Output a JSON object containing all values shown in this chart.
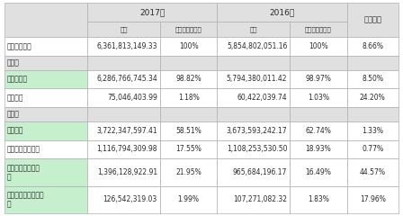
{
  "title_2017": "2017年",
  "title_2016": "2016年",
  "col_yonbi": "同比增减",
  "sub_col_jine": "金额",
  "sub_col_zhan": "占营业收入比重",
  "header_bg": "#e0e0e0",
  "section_bg": "#e0e0e0",
  "green_bg": "#c6efce",
  "white_bg": "#ffffff",
  "border_color": "#b0b0b0",
  "text_color": "#2a2a2a",
  "rows": [
    {
      "label": "营业收入合计",
      "val_2017": "6,361,813,149.33",
      "pct_2017": "100%",
      "val_2016": "5,854,802,051.16",
      "pct_2016": "100%",
      "yonbi": "8.66%",
      "label_bg": "#ffffff",
      "data_bg": "#ffffff",
      "is_section": false
    },
    {
      "label": "分行业",
      "val_2017": "",
      "pct_2017": "",
      "val_2016": "",
      "pct_2016": "",
      "yonbi": "",
      "label_bg": "#e0e0e0",
      "data_bg": "#e0e0e0",
      "is_section": true
    },
    {
      "label": "连接器行业",
      "val_2017": "6,286,766,745.34",
      "pct_2017": "98.82%",
      "val_2016": "5,794,380,011.42",
      "pct_2016": "98.97%",
      "yonbi": "8.50%",
      "label_bg": "#c6efce",
      "data_bg": "#ffffff",
      "is_section": false
    },
    {
      "label": "其他行业",
      "val_2017": "75,046,403.99",
      "pct_2017": "1.18%",
      "val_2016": "60,422,039.74",
      "pct_2016": "1.03%",
      "yonbi": "24.20%",
      "label_bg": "#ffffff",
      "data_bg": "#ffffff",
      "is_section": false
    },
    {
      "label": "分产品",
      "val_2017": "",
      "pct_2017": "",
      "val_2016": "",
      "pct_2016": "",
      "yonbi": "",
      "label_bg": "#e0e0e0",
      "data_bg": "#e0e0e0",
      "is_section": true
    },
    {
      "label": "电连接器",
      "val_2017": "3,722,347,597.41",
      "pct_2017": "58.51%",
      "val_2016": "3,673,593,242.17",
      "pct_2016": "62.74%",
      "yonbi": "1.33%",
      "label_bg": "#c6efce",
      "data_bg": "#ffffff",
      "is_section": false
    },
    {
      "label": "光器件及光电设备",
      "val_2017": "1,116,794,309.98",
      "pct_2017": "17.55%",
      "val_2016": "1,108,253,530.50",
      "pct_2016": "18.93%",
      "yonbi": "0.77%",
      "label_bg": "#ffffff",
      "data_bg": "#ffffff",
      "is_section": false
    },
    {
      "label": "线缆组件及集成产品",
      "val_2017": "1,396,128,922.91",
      "pct_2017": "21.95%",
      "val_2016": "965,684,196.17",
      "pct_2016": "16.49%",
      "yonbi": "44.57%",
      "label_bg": "#c6efce",
      "data_bg": "#ffffff",
      "is_section": false
    },
    {
      "label": "流体、齿科及其他产品",
      "val_2017": "126,542,319.03",
      "pct_2017": "1.99%",
      "val_2016": "107,271,082.32",
      "pct_2016": "1.83%",
      "yonbi": "17.96%",
      "label_bg": "#c6efce",
      "data_bg": "#ffffff",
      "is_section": false
    }
  ],
  "figsize": [
    4.48,
    2.4
  ],
  "dpi": 100
}
